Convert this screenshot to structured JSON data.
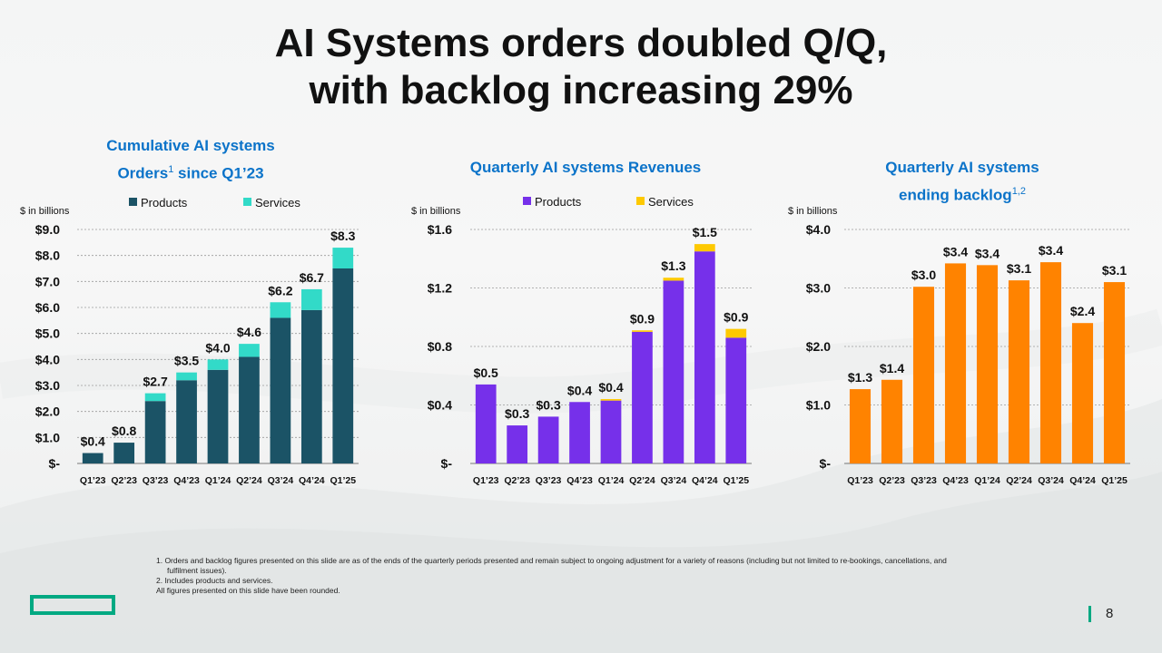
{
  "slide": {
    "title_line1": "AI Systems orders doubled Q/Q,",
    "title_line2": "with backlog increasing 29%",
    "page_number": "8",
    "footnotes": [
      "1.  Orders and backlog figures presented on this slide are as of the ends of the quarterly periods presented and remain subject to ongoing adjustment for a variety of reasons (including but not limited to re-bookings, cancellations, and",
      "fulfilment issues).",
      "2.  Includes products and services.",
      "All figures presented on this slide have been rounded."
    ],
    "brand_color": "#01a982"
  },
  "chart_titles": {
    "orders_line1": "Cumulative AI systems",
    "orders_line2": "Orders",
    "orders_sup": "1",
    "orders_line2_rest": " since Q1’23",
    "revenue_line1": "Quarterly AI systems Revenues",
    "backlog_line1": "Quarterly AI systems",
    "backlog_line2": "ending backlog",
    "backlog_sup": "1,2"
  },
  "chart_data": [
    {
      "type": "bar",
      "stacked": true,
      "unit_label": "$ in billions",
      "categories": [
        "Q1’23",
        "Q2’23",
        "Q3’23",
        "Q4’23",
        "Q1’24",
        "Q2’24",
        "Q3’24",
        "Q4’24",
        "Q1’25"
      ],
      "series": [
        {
          "name": "Products",
          "color": "#1b5366",
          "values": [
            0.4,
            0.8,
            2.4,
            3.2,
            3.6,
            4.1,
            5.6,
            5.9,
            7.5
          ]
        },
        {
          "name": "Services",
          "color": "#32dac8",
          "values": [
            0.0,
            0.0,
            0.3,
            0.3,
            0.4,
            0.5,
            0.6,
            0.8,
            0.8
          ]
        }
      ],
      "data_labels": [
        "$0.4",
        "$0.8",
        "$2.7",
        "$3.5",
        "$4.0",
        "$4.6",
        "$6.2",
        "$6.7",
        "$8.3"
      ],
      "yticks": [
        0,
        1,
        2,
        3,
        4,
        5,
        6,
        7,
        8,
        9
      ],
      "ytick_labels": [
        "$-",
        "$1.0",
        "$2.0",
        "$3.0",
        "$4.0",
        "$5.0",
        "$6.0",
        "$7.0",
        "$8.0",
        "$9.0"
      ],
      "ylim": [
        0,
        9
      ],
      "legend": "top"
    },
    {
      "type": "bar",
      "stacked": true,
      "unit_label": "$ in billions",
      "categories": [
        "Q1’23",
        "Q2’23",
        "Q3’23",
        "Q4’23",
        "Q1’24",
        "Q2’24",
        "Q3’24",
        "Q4’24",
        "Q1’25"
      ],
      "series": [
        {
          "name": "Products",
          "color": "#7630ea",
          "values": [
            0.54,
            0.26,
            0.32,
            0.42,
            0.43,
            0.9,
            1.25,
            1.45,
            0.86
          ]
        },
        {
          "name": "Services",
          "color": "#fec901",
          "values": [
            0.0,
            0.0,
            0.0,
            0.0,
            0.01,
            0.01,
            0.02,
            0.05,
            0.06
          ]
        }
      ],
      "data_labels": [
        "$0.5",
        "$0.3",
        "$0.3",
        "$0.4",
        "$0.4",
        "$0.9",
        "$1.3",
        "$1.5",
        "$0.9"
      ],
      "yticks": [
        0,
        0.4,
        0.8,
        1.2,
        1.6
      ],
      "ytick_labels": [
        "$-",
        "$0.4",
        "$0.8",
        "$1.2",
        "$1.6"
      ],
      "ylim": [
        0,
        1.6
      ],
      "legend": "top"
    },
    {
      "type": "bar",
      "stacked": false,
      "unit_label": "$ in billions",
      "categories": [
        "Q1’23",
        "Q2’23",
        "Q3’23",
        "Q4’23",
        "Q1’24",
        "Q2’24",
        "Q3’24",
        "Q4’24",
        "Q1’25"
      ],
      "series": [
        {
          "color": "#ff8300",
          "values": [
            1.27,
            1.43,
            3.02,
            3.42,
            3.39,
            3.13,
            3.44,
            2.4,
            3.1
          ]
        }
      ],
      "data_labels": [
        "$1.3",
        "$1.4",
        "$3.0",
        "$3.4",
        "$3.4",
        "$3.1",
        "$3.4",
        "$2.4",
        "$3.1"
      ],
      "yticks": [
        0,
        1,
        2,
        3,
        4
      ],
      "ytick_labels": [
        "$-",
        "$1.0",
        "$2.0",
        "$3.0",
        "$4.0"
      ],
      "ylim": [
        0,
        4
      ]
    }
  ]
}
